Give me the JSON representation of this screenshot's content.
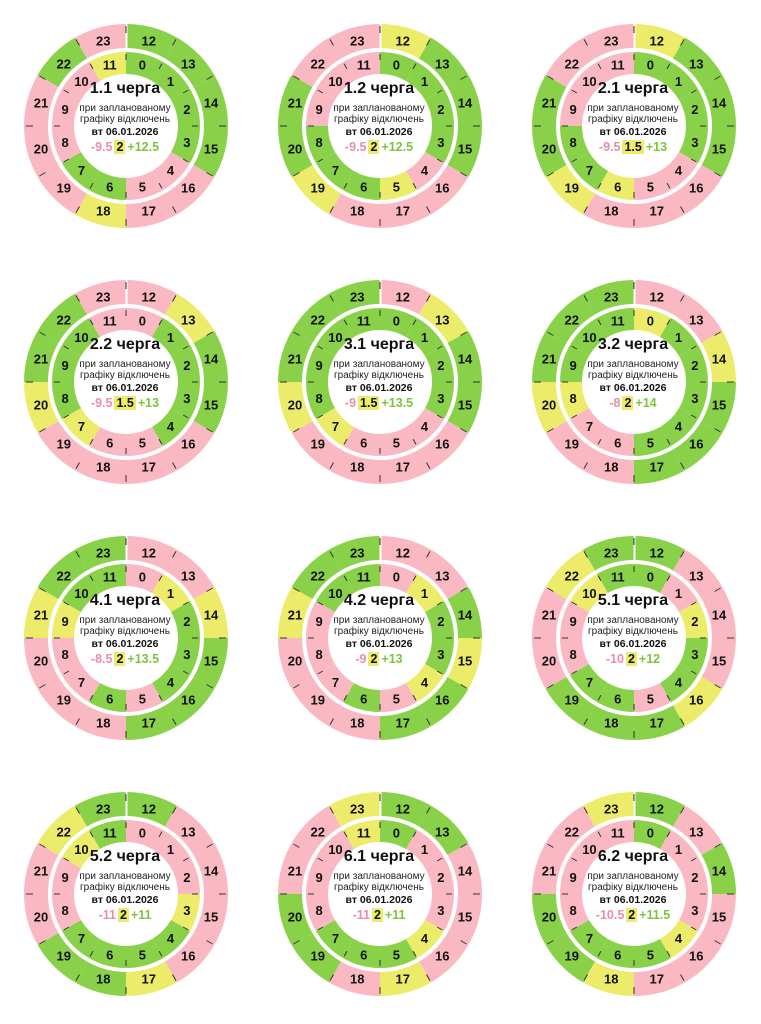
{
  "colors": {
    "on": "#8ad14a",
    "off": "#fab8c3",
    "maybe": "#ecec6a"
  },
  "subtitle": "при запланованому графіку відключень",
  "date": "вт 06.01.2026",
  "charts": [
    {
      "title": "1.1 черга",
      "neg": "-9.5",
      "mid": "2",
      "pos": "+12.5",
      "outer": [
        "on",
        "on",
        "on",
        "on",
        "off",
        "off",
        "maybe",
        "off",
        "off",
        "off",
        "on",
        "off"
      ],
      "inner": [
        "on",
        "on",
        "on",
        "on",
        "off",
        "off",
        "on",
        "on",
        "off",
        "off",
        "off",
        "maybe"
      ]
    },
    {
      "title": "1.2 черга",
      "neg": "-9.5",
      "mid": "2",
      "pos": "+12.5",
      "outer": [
        "maybe",
        "on",
        "on",
        "on",
        "off",
        "off",
        "off",
        "maybe",
        "on",
        "on",
        "off",
        "off"
      ],
      "inner": [
        "on",
        "on",
        "on",
        "on",
        "off",
        "maybe",
        "on",
        "on",
        "on",
        "off",
        "off",
        "off"
      ]
    },
    {
      "title": "2.1 черга",
      "neg": "-9.5",
      "mid": "1.5",
      "pos": "+13",
      "outer": [
        "maybe",
        "on",
        "on",
        "on",
        "off",
        "off",
        "off",
        "maybe",
        "on",
        "on",
        "off",
        "off"
      ],
      "inner": [
        "on",
        "on",
        "on",
        "on",
        "off",
        "off",
        "maybe",
        "on",
        "on",
        "off",
        "off",
        "off"
      ]
    },
    {
      "title": "2.2 черга",
      "neg": "-9.5",
      "mid": "1.5",
      "pos": "+13",
      "outer": [
        "off",
        "maybe",
        "on",
        "on",
        "off",
        "off",
        "off",
        "off",
        "maybe",
        "on",
        "on",
        "off"
      ],
      "inner": [
        "off",
        "on",
        "on",
        "on",
        "on",
        "off",
        "off",
        "maybe",
        "on",
        "on",
        "on",
        "off"
      ]
    },
    {
      "title": "3.1 черга",
      "neg": "-9",
      "mid": "1.5",
      "pos": "+13.5",
      "outer": [
        "off",
        "maybe",
        "on",
        "on",
        "off",
        "off",
        "off",
        "off",
        "maybe",
        "on",
        "on",
        "on"
      ],
      "inner": [
        "on",
        "on",
        "on",
        "on",
        "off",
        "off",
        "off",
        "maybe",
        "on",
        "on",
        "on",
        "on"
      ]
    },
    {
      "title": "3.2 черга",
      "neg": "-8",
      "mid": "2",
      "pos": "+14",
      "outer": [
        "off",
        "off",
        "maybe",
        "on",
        "on",
        "on",
        "off",
        "off",
        "maybe",
        "on",
        "on",
        "on"
      ],
      "inner": [
        "maybe",
        "on",
        "on",
        "on",
        "on",
        "on",
        "off",
        "off",
        "maybe",
        "on",
        "on",
        "on"
      ]
    },
    {
      "title": "4.1 черга",
      "neg": "-8.5",
      "mid": "2",
      "pos": "+13.5",
      "outer": [
        "off",
        "off",
        "maybe",
        "on",
        "on",
        "on",
        "off",
        "off",
        "off",
        "maybe",
        "on",
        "on"
      ],
      "inner": [
        "off",
        "maybe",
        "on",
        "on",
        "on",
        "off",
        "on",
        "off",
        "off",
        "maybe",
        "on",
        "on"
      ]
    },
    {
      "title": "4.2 черга",
      "neg": "-9",
      "mid": "2",
      "pos": "+13",
      "outer": [
        "off",
        "off",
        "on",
        "maybe",
        "on",
        "on",
        "off",
        "off",
        "off",
        "maybe",
        "on",
        "on"
      ],
      "inner": [
        "off",
        "maybe",
        "on",
        "on",
        "maybe",
        "off",
        "on",
        "off",
        "off",
        "off",
        "on",
        "on"
      ]
    },
    {
      "title": "5.1 черга",
      "neg": "-10",
      "mid": "2",
      "pos": "+12",
      "outer": [
        "on",
        "off",
        "off",
        "off",
        "maybe",
        "on",
        "on",
        "on",
        "off",
        "off",
        "maybe",
        "on"
      ],
      "inner": [
        "on",
        "off",
        "maybe",
        "on",
        "on",
        "off",
        "on",
        "on",
        "off",
        "off",
        "maybe",
        "on"
      ]
    },
    {
      "title": "5.2 черга",
      "neg": "-11",
      "mid": "2",
      "pos": "+11",
      "outer": [
        "on",
        "off",
        "off",
        "off",
        "off",
        "maybe",
        "on",
        "on",
        "off",
        "off",
        "maybe",
        "on"
      ],
      "inner": [
        "off",
        "off",
        "off",
        "maybe",
        "on",
        "on",
        "on",
        "on",
        "off",
        "off",
        "maybe",
        "on"
      ]
    },
    {
      "title": "6.1 черга",
      "neg": "-11",
      "mid": "2",
      "pos": "+11",
      "outer": [
        "on",
        "on",
        "off",
        "off",
        "off",
        "maybe",
        "off",
        "on",
        "on",
        "off",
        "off",
        "maybe"
      ],
      "inner": [
        "on",
        "off",
        "off",
        "off",
        "maybe",
        "on",
        "on",
        "on",
        "off",
        "off",
        "off",
        "maybe"
      ]
    },
    {
      "title": "6.2 черга",
      "neg": "-10.5",
      "mid": "2",
      "pos": "+11.5",
      "outer": [
        "on",
        "off",
        "on",
        "off",
        "off",
        "off",
        "maybe",
        "on",
        "on",
        "off",
        "off",
        "maybe"
      ],
      "inner": [
        "on",
        "off",
        "off",
        "off",
        "maybe",
        "on",
        "on",
        "on",
        "off",
        "off",
        "off",
        "off"
      ]
    }
  ]
}
